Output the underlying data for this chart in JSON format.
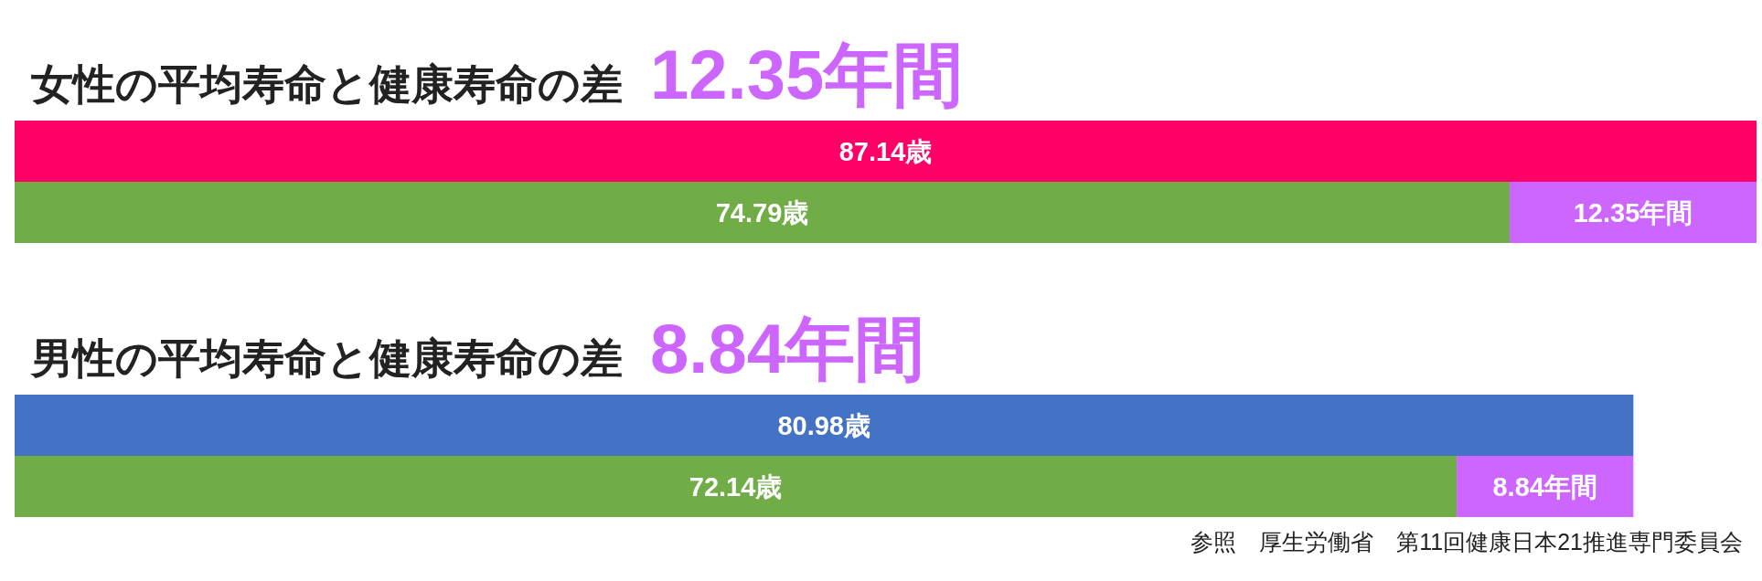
{
  "chart_data": [
    {
      "type": "bar",
      "orientation": "horizontal",
      "stacked": true,
      "title": "女性の平均寿命と健康寿命の差 12.35年間",
      "categories": [
        null,
        null
      ],
      "series": [
        {
          "color": "#ff0066",
          "values": [
            87.14,
            null
          ],
          "value_labels": [
            "87.14歳",
            null
          ]
        },
        {
          "color": "#70ad47",
          "values": [
            null,
            74.79
          ],
          "value_labels": [
            null,
            "74.79歳"
          ]
        },
        {
          "color": "#cc66ff",
          "values": [
            null,
            12.35
          ],
          "value_labels": [
            null,
            "12.35年間"
          ]
        }
      ]
    },
    {
      "type": "bar",
      "orientation": "horizontal",
      "stacked": true,
      "title": "男性の平均寿命と健康寿命の差 8.84年間",
      "categories": [
        null,
        null
      ],
      "series": [
        {
          "color": "#4472c4",
          "values": [
            80.98,
            null
          ],
          "value_labels": [
            "80.98歳",
            null
          ]
        },
        {
          "color": "#70ad47",
          "values": [
            null,
            72.14
          ],
          "value_labels": [
            null,
            "72.14歳"
          ]
        },
        {
          "color": "#cc66ff",
          "values": [
            null,
            8.84
          ],
          "value_labels": [
            null,
            "8.84年間"
          ]
        }
      ],
      "annotations": [
        "参照　厚生労働省　第11回健康日本21推進専門委員会"
      ]
    }
  ]
}
